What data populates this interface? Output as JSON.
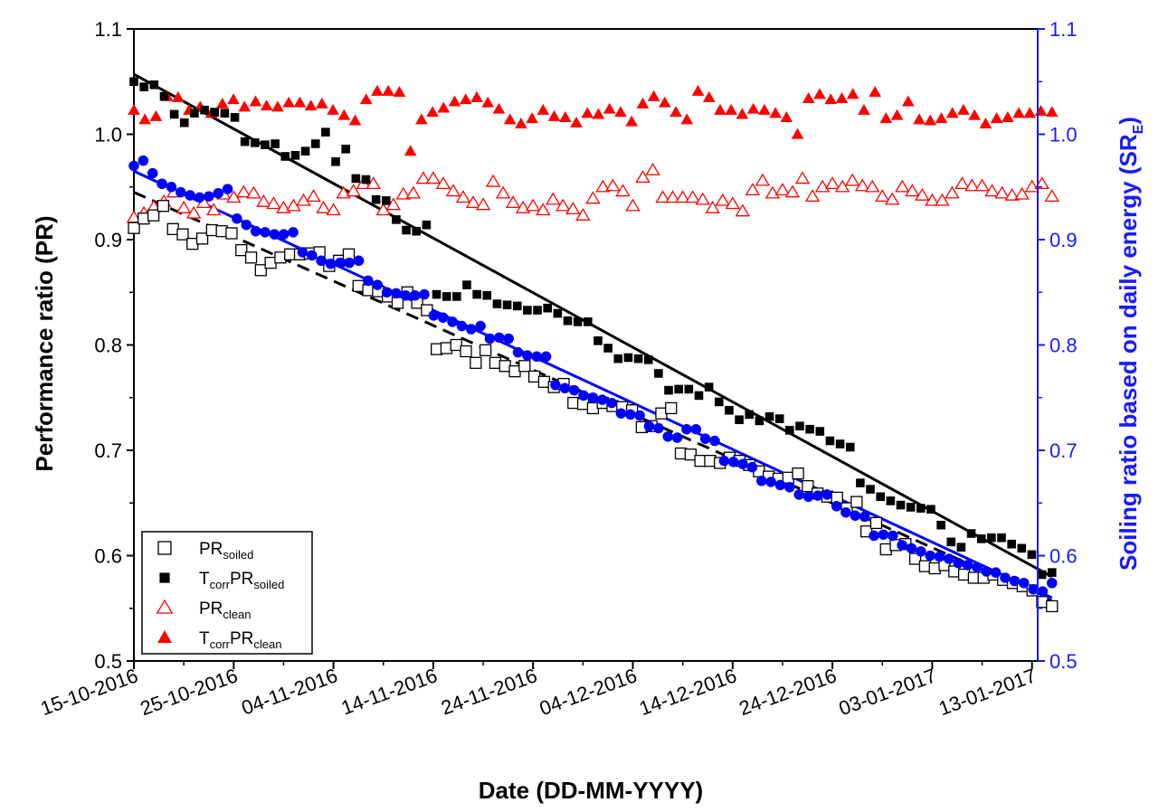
{
  "chart_data": {
    "type": "scatter",
    "xlabel": "Date (DD-MM-YYYY)",
    "ylabel_left": "Performance ratio (PR)",
    "ylabel_right": "Soiling ratio based on daily energy (SR",
    "ylabel_right_sub": "E",
    "ylabel_right_end": ")",
    "ylim": [
      0.5,
      1.1
    ],
    "y_ticks": [
      "0.5",
      "0.6",
      "0.7",
      "0.8",
      "0.9",
      "1.0",
      "1.1"
    ],
    "x_ticks": [
      "15-10-2016",
      "25-10-2016",
      "04-11-2016",
      "14-11-2016",
      "24-11-2016",
      "04-12-2016",
      "14-12-2016",
      "24-12-2016",
      "03-01-2017",
      "13-01-2017"
    ],
    "legend": [
      {
        "main": "PR",
        "sub": "soiled",
        "pre": "",
        "pre_sub": "",
        "marker": "open-square",
        "color": "#000000"
      },
      {
        "main": "PR",
        "sub": "soiled",
        "pre": "T",
        "pre_sub": "corr",
        "marker": "filled-square",
        "color": "#000000"
      },
      {
        "main": "PR",
        "sub": "clean",
        "pre": "",
        "pre_sub": "",
        "marker": "open-triangle",
        "color": "#ff0000"
      },
      {
        "main": "PR",
        "sub": "clean",
        "pre": "T",
        "pre_sub": "corr",
        "marker": "filled-triangle",
        "color": "#ff0000"
      }
    ],
    "series": [
      {
        "name": "PRsoiled",
        "marker": "open-square",
        "color": "#000000",
        "y": [
          0.911,
          0.92,
          0.923,
          0.932,
          0.91,
          0.905,
          0.896,
          0.901,
          0.909,
          0.908,
          0.906,
          0.89,
          0.883,
          0.871,
          0.878,
          0.883,
          0.886,
          0.886,
          0.887,
          0.888,
          0.875,
          0.88,
          0.886,
          0.856,
          0.852,
          0.851,
          0.846,
          0.84,
          0.85,
          0.84,
          0.833,
          0.796,
          0.797,
          0.8,
          0.794,
          0.783,
          0.795,
          0.783,
          0.78,
          0.775,
          0.78,
          0.77,
          0.765,
          0.76,
          0.763,
          0.745,
          0.744,
          0.74,
          0.745,
          0.742,
          0.741,
          0.738,
          0.722,
          0.723,
          0.735,
          0.74,
          0.697,
          0.696,
          0.69,
          0.69,
          0.688,
          0.693,
          0.69,
          0.686,
          0.68,
          0.675,
          0.673,
          0.674,
          0.678,
          0.666,
          0.659,
          0.656,
          0.655,
          0.645,
          0.651,
          0.623,
          0.631,
          0.606,
          0.61,
          0.611,
          0.597,
          0.59,
          0.588,
          0.591,
          0.585,
          0.582,
          0.579,
          0.579,
          0.582,
          0.577,
          0.574,
          0.571,
          0.567,
          0.556,
          0.552
        ]
      },
      {
        "name": "TcorrPRsoiled",
        "marker": "filled-square",
        "color": "#000000",
        "y": [
          1.05,
          1.045,
          1.047,
          1.036,
          1.019,
          1.011,
          1.02,
          1.023,
          1.021,
          1.02,
          1.016,
          0.993,
          0.992,
          0.99,
          0.991,
          0.979,
          0.98,
          0.984,
          0.991,
          1.002,
          0.974,
          0.986,
          0.958,
          0.957,
          0.938,
          0.937,
          0.919,
          0.909,
          0.908,
          0.914,
          0.848,
          0.846,
          0.846,
          0.857,
          0.848,
          0.847,
          0.839,
          0.838,
          0.837,
          0.833,
          0.833,
          0.835,
          0.83,
          0.823,
          0.822,
          0.822,
          0.804,
          0.797,
          0.787,
          0.788,
          0.787,
          0.786,
          0.773,
          0.757,
          0.758,
          0.758,
          0.752,
          0.76,
          0.746,
          0.738,
          0.729,
          0.734,
          0.728,
          0.732,
          0.73,
          0.719,
          0.723,
          0.72,
          0.718,
          0.709,
          0.706,
          0.703,
          0.669,
          0.663,
          0.656,
          0.652,
          0.648,
          0.646,
          0.645,
          0.644,
          0.629,
          0.613,
          0.608,
          0.621,
          0.616,
          0.617,
          0.617,
          0.611,
          0.607,
          0.601,
          0.582,
          0.584
        ]
      },
      {
        "name": "PRclean",
        "marker": "open-triangle",
        "color": "#ff0000",
        "y": [
          0.921,
          0.925,
          0.931,
          0.936,
          0.945,
          0.93,
          0.925,
          0.935,
          0.928,
          0.943,
          0.94,
          0.945,
          0.944,
          0.936,
          0.934,
          0.93,
          0.932,
          0.937,
          0.941,
          0.93,
          0.928,
          0.944,
          0.946,
          0.953,
          0.953,
          0.928,
          0.933,
          0.943,
          0.944,
          0.958,
          0.958,
          0.953,
          0.946,
          0.94,
          0.935,
          0.933,
          0.955,
          0.944,
          0.935,
          0.93,
          0.932,
          0.928,
          0.938,
          0.932,
          0.929,
          0.923,
          0.939,
          0.95,
          0.951,
          0.946,
          0.932,
          0.959,
          0.966,
          0.94,
          0.94,
          0.94,
          0.94,
          0.938,
          0.93,
          0.937,
          0.934,
          0.927,
          0.947,
          0.956,
          0.944,
          0.947,
          0.945,
          0.958,
          0.941,
          0.95,
          0.953,
          0.95,
          0.956,
          0.951,
          0.95,
          0.941,
          0.938,
          0.95,
          0.946,
          0.942,
          0.937,
          0.937,
          0.944,
          0.953,
          0.951,
          0.951,
          0.946,
          0.944,
          0.942,
          0.943,
          0.95,
          0.953,
          0.941
        ]
      },
      {
        "name": "TcorrPRclean",
        "marker": "filled-triangle",
        "color": "#ff0000",
        "y": [
          1.023,
          1.014,
          1.017,
          1.036,
          1.035,
          1.023,
          1.026,
          1.02,
          1.029,
          1.033,
          1.026,
          1.031,
          1.027,
          1.026,
          1.03,
          1.03,
          1.027,
          1.029,
          1.023,
          1.018,
          1.013,
          1.033,
          1.041,
          1.041,
          1.04,
          0.984,
          1.014,
          1.021,
          1.025,
          1.031,
          1.033,
          1.035,
          1.03,
          1.024,
          1.014,
          1.01,
          1.015,
          1.023,
          1.017,
          1.016,
          1.011,
          1.02,
          1.019,
          1.024,
          1.021,
          1.012,
          1.029,
          1.036,
          1.03,
          1.021,
          1.014,
          1.041,
          1.035,
          1.023,
          1.023,
          1.019,
          1.024,
          1.023,
          1.02,
          1.016,
          1.0,
          1.034,
          1.038,
          1.033,
          1.034,
          1.038,
          1.023,
          1.04,
          1.015,
          1.018,
          1.031,
          1.014,
          1.013,
          1.015,
          1.02,
          1.023,
          1.018,
          1.01,
          1.015,
          1.016,
          1.02,
          1.02,
          1.022,
          1.021
        ]
      },
      {
        "name": "SRE",
        "marker": "filled-circle",
        "color": "#0000ff",
        "y": [
          0.97,
          0.975,
          0.963,
          0.953,
          0.95,
          0.945,
          0.942,
          0.94,
          0.941,
          0.944,
          0.948,
          0.92,
          0.914,
          0.908,
          0.907,
          0.905,
          0.905,
          0.907,
          0.888,
          0.885,
          0.88,
          0.877,
          0.878,
          0.878,
          0.88,
          0.861,
          0.857,
          0.85,
          0.849,
          0.847,
          0.847,
          0.848,
          0.828,
          0.826,
          0.822,
          0.818,
          0.815,
          0.818,
          0.806,
          0.807,
          0.806,
          0.793,
          0.79,
          0.789,
          0.789,
          0.762,
          0.759,
          0.757,
          0.752,
          0.75,
          0.748,
          0.745,
          0.735,
          0.734,
          0.733,
          0.723,
          0.721,
          0.713,
          0.712,
          0.72,
          0.72,
          0.711,
          0.709,
          0.69,
          0.689,
          0.687,
          0.684,
          0.671,
          0.67,
          0.667,
          0.665,
          0.658,
          0.656,
          0.657,
          0.658,
          0.647,
          0.641,
          0.638,
          0.637,
          0.619,
          0.62,
          0.619,
          0.61,
          0.607,
          0.604,
          0.6,
          0.599,
          0.597,
          0.593,
          0.591,
          0.589,
          0.585,
          0.584,
          0.579,
          0.576,
          0.574,
          0.568,
          0.566,
          0.574
        ]
      }
    ],
    "trendlines": [
      {
        "name": "TcorrPRsoiled-fit",
        "style": "solid",
        "color": "#000000",
        "y": [
          1.057,
          0.58
        ]
      },
      {
        "name": "PRsoiled-fit",
        "style": "dashed",
        "color": "#000000",
        "y": [
          0.945,
          0.557
        ]
      },
      {
        "name": "SRE-fit",
        "style": "solid",
        "color": "#0000ff",
        "y": [
          0.965,
          0.56
        ]
      }
    ]
  }
}
